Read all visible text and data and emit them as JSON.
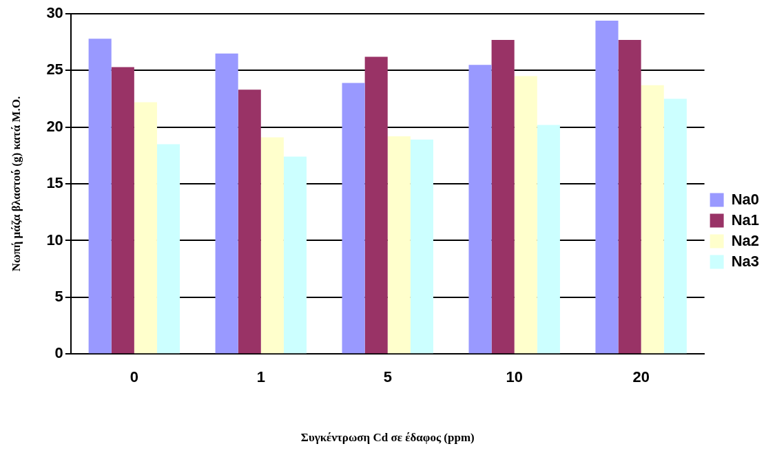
{
  "chart_data": {
    "type": "bar",
    "xlabel": "Συγκέντρωση Cd σε έδαφος (ppm)",
    "ylabel": "Νωπή μάζα βλαστού (g) κατά Μ.Ο.",
    "categories": [
      "0",
      "1",
      "5",
      "10",
      "20"
    ],
    "series": [
      {
        "name": "Na0",
        "color": "#9999ff",
        "values": [
          27.8,
          26.5,
          23.9,
          25.5,
          29.4
        ]
      },
      {
        "name": "Na1",
        "color": "#993366",
        "values": [
          25.3,
          23.3,
          26.2,
          27.7,
          27.7
        ]
      },
      {
        "name": "Na2",
        "color": "#ffffcc",
        "values": [
          22.2,
          19.1,
          19.2,
          24.5,
          23.7
        ]
      },
      {
        "name": "Na3",
        "color": "#ccffff",
        "values": [
          18.5,
          17.4,
          18.9,
          20.2,
          22.5
        ]
      }
    ],
    "ylim": [
      0,
      30
    ],
    "yticks": [
      0,
      5,
      10,
      15,
      20,
      25,
      30
    ],
    "grid": "y",
    "legend": "right"
  }
}
